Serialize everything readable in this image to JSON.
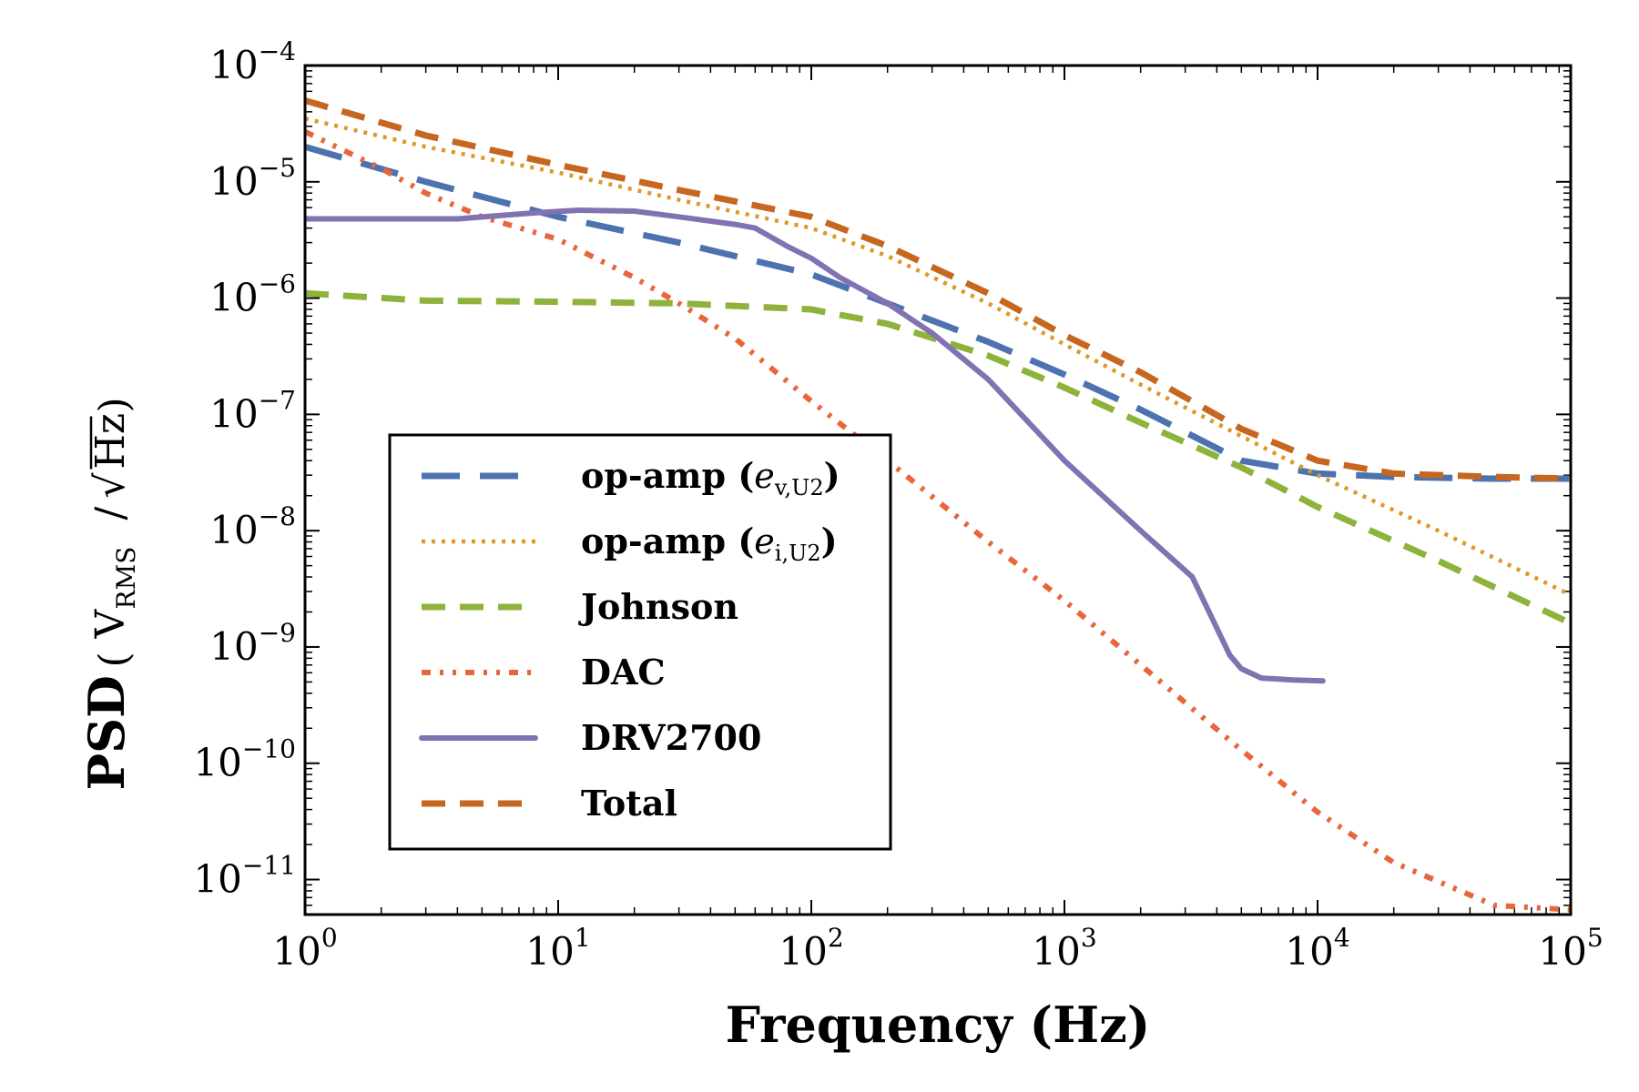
{
  "chart_data": {
    "type": "line",
    "title": "",
    "xlabel": "Frequency (Hz)",
    "ylabel": {
      "main": "PSD",
      "unit_base": "V",
      "unit_sub": "RMS",
      "unit_root": "Hz"
    },
    "xscale": "log",
    "yscale": "log",
    "xlim": [
      1,
      100000
    ],
    "ylim": [
      5e-12,
      0.0001
    ],
    "x_ticks": [
      {
        "value": 1,
        "base": "10",
        "exp": "0"
      },
      {
        "value": 10,
        "base": "10",
        "exp": "1"
      },
      {
        "value": 100,
        "base": "10",
        "exp": "2"
      },
      {
        "value": 1000,
        "base": "10",
        "exp": "3"
      },
      {
        "value": 10000,
        "base": "10",
        "exp": "4"
      },
      {
        "value": 100000,
        "base": "10",
        "exp": "5"
      }
    ],
    "y_ticks": [
      {
        "value": 0.0001,
        "base": "10",
        "exp": "−4"
      },
      {
        "value": 1e-05,
        "base": "10",
        "exp": "−5"
      },
      {
        "value": 1e-06,
        "base": "10",
        "exp": "−6"
      },
      {
        "value": 1e-07,
        "base": "10",
        "exp": "−7"
      },
      {
        "value": 1e-08,
        "base": "10",
        "exp": "−8"
      },
      {
        "value": 1e-09,
        "base": "10",
        "exp": "−9"
      },
      {
        "value": 1e-10,
        "base": "10",
        "exp": "−10"
      },
      {
        "value": 1e-11,
        "base": "10",
        "exp": "−11"
      }
    ],
    "legend_position": "lower-left",
    "series": [
      {
        "name": "op-amp (e_{v,U2})",
        "label_prefix": "op-amp (",
        "label_var": "e",
        "label_sub": "v,U2",
        "label_suffix": ")",
        "color": "#4c72b0",
        "style": "long-dash",
        "x": [
          1,
          3,
          10,
          30,
          100,
          200,
          500,
          1000,
          2000,
          5000,
          10000,
          20000,
          50000,
          100000
        ],
        "y": [
          2e-05,
          1e-05,
          5e-06,
          3e-06,
          1.6e-06,
          9e-07,
          4.2e-07,
          2.2e-07,
          1.1e-07,
          4e-08,
          3.1e-08,
          2.9e-08,
          2.8e-08,
          2.8e-08
        ]
      },
      {
        "name": "op-amp (e_{i,U2})",
        "label_prefix": "op-amp (",
        "label_var": "e",
        "label_sub": "i,U2",
        "label_suffix": ")",
        "color": "#dd9928",
        "style": "dotted",
        "x": [
          1,
          3,
          10,
          30,
          100,
          200,
          500,
          1000,
          2000,
          5000,
          10000,
          30000,
          100000
        ],
        "y": [
          3.5e-05,
          2e-05,
          1.2e-05,
          7e-06,
          4e-06,
          2.3e-06,
          9e-07,
          4e-07,
          1.8e-07,
          6.5e-08,
          3e-08,
          1e-08,
          2.8e-09
        ]
      },
      {
        "name": "Johnson",
        "label_prefix": "Johnson",
        "label_var": "",
        "label_sub": "",
        "label_suffix": "",
        "color": "#8eb33b",
        "style": "dashed",
        "x": [
          1,
          3,
          10,
          30,
          100,
          200,
          500,
          1000,
          2000,
          5000,
          10000,
          30000,
          100000
        ],
        "y": [
          1.1e-06,
          9.5e-07,
          9.3e-07,
          9e-07,
          8e-07,
          6e-07,
          3.2e-07,
          1.7e-07,
          8.5e-08,
          3.5e-08,
          1.6e-08,
          5.5e-09,
          1.6e-09
        ]
      },
      {
        "name": "DAC",
        "label_prefix": "DAC",
        "label_var": "",
        "label_sub": "",
        "label_suffix": "",
        "color": "#e8663b",
        "style": "dash-dot-dot",
        "x": [
          1,
          2,
          3,
          5,
          10,
          20,
          30,
          50,
          100,
          200,
          500,
          1000,
          2000,
          5000,
          10000,
          20000,
          50000,
          100000
        ],
        "y": [
          2.7e-05,
          1.3e-05,
          8e-06,
          5e-06,
          3.2e-06,
          1.5e-06,
          9e-07,
          4.5e-07,
          1.3e-07,
          4e-08,
          8e-09,
          2.5e-09,
          7e-10,
          1.3e-10,
          3.8e-11,
          1.4e-11,
          6e-12,
          5.5e-12
        ]
      },
      {
        "name": "DRV2700",
        "label_prefix": "DRV2700",
        "label_var": "",
        "label_sub": "",
        "label_suffix": "",
        "color": "#8172b2",
        "style": "solid",
        "x": [
          1,
          2,
          4,
          8,
          12,
          20,
          30,
          50,
          60,
          80,
          100,
          130,
          200,
          300,
          500,
          1000,
          2000,
          3200,
          4500,
          5000,
          6000,
          8000,
          10500
        ],
        "y": [
          4.8e-06,
          4.8e-06,
          4.8e-06,
          5.4e-06,
          5.7e-06,
          5.6e-06,
          5e-06,
          4.3e-06,
          4e-06,
          2.8e-06,
          2.2e-06,
          1.5e-06,
          9e-07,
          5e-07,
          2e-07,
          4e-08,
          1e-08,
          4e-09,
          8.5e-10,
          6.5e-10,
          5.4e-10,
          5.2e-10,
          5.1e-10
        ]
      },
      {
        "name": "Total",
        "label_prefix": "Total",
        "label_var": "",
        "label_sub": "",
        "label_suffix": "",
        "color": "#c6661f",
        "style": "dashed",
        "x": [
          1,
          3,
          10,
          30,
          100,
          200,
          500,
          1000,
          2000,
          5000,
          10000,
          20000,
          50000,
          100000
        ],
        "y": [
          5e-05,
          2.5e-05,
          1.4e-05,
          8.5e-06,
          5e-06,
          2.8e-06,
          1.1e-06,
          4.8e-07,
          2.3e-07,
          7.5e-08,
          4e-08,
          3.1e-08,
          2.9e-08,
          2.8e-08
        ]
      }
    ]
  }
}
